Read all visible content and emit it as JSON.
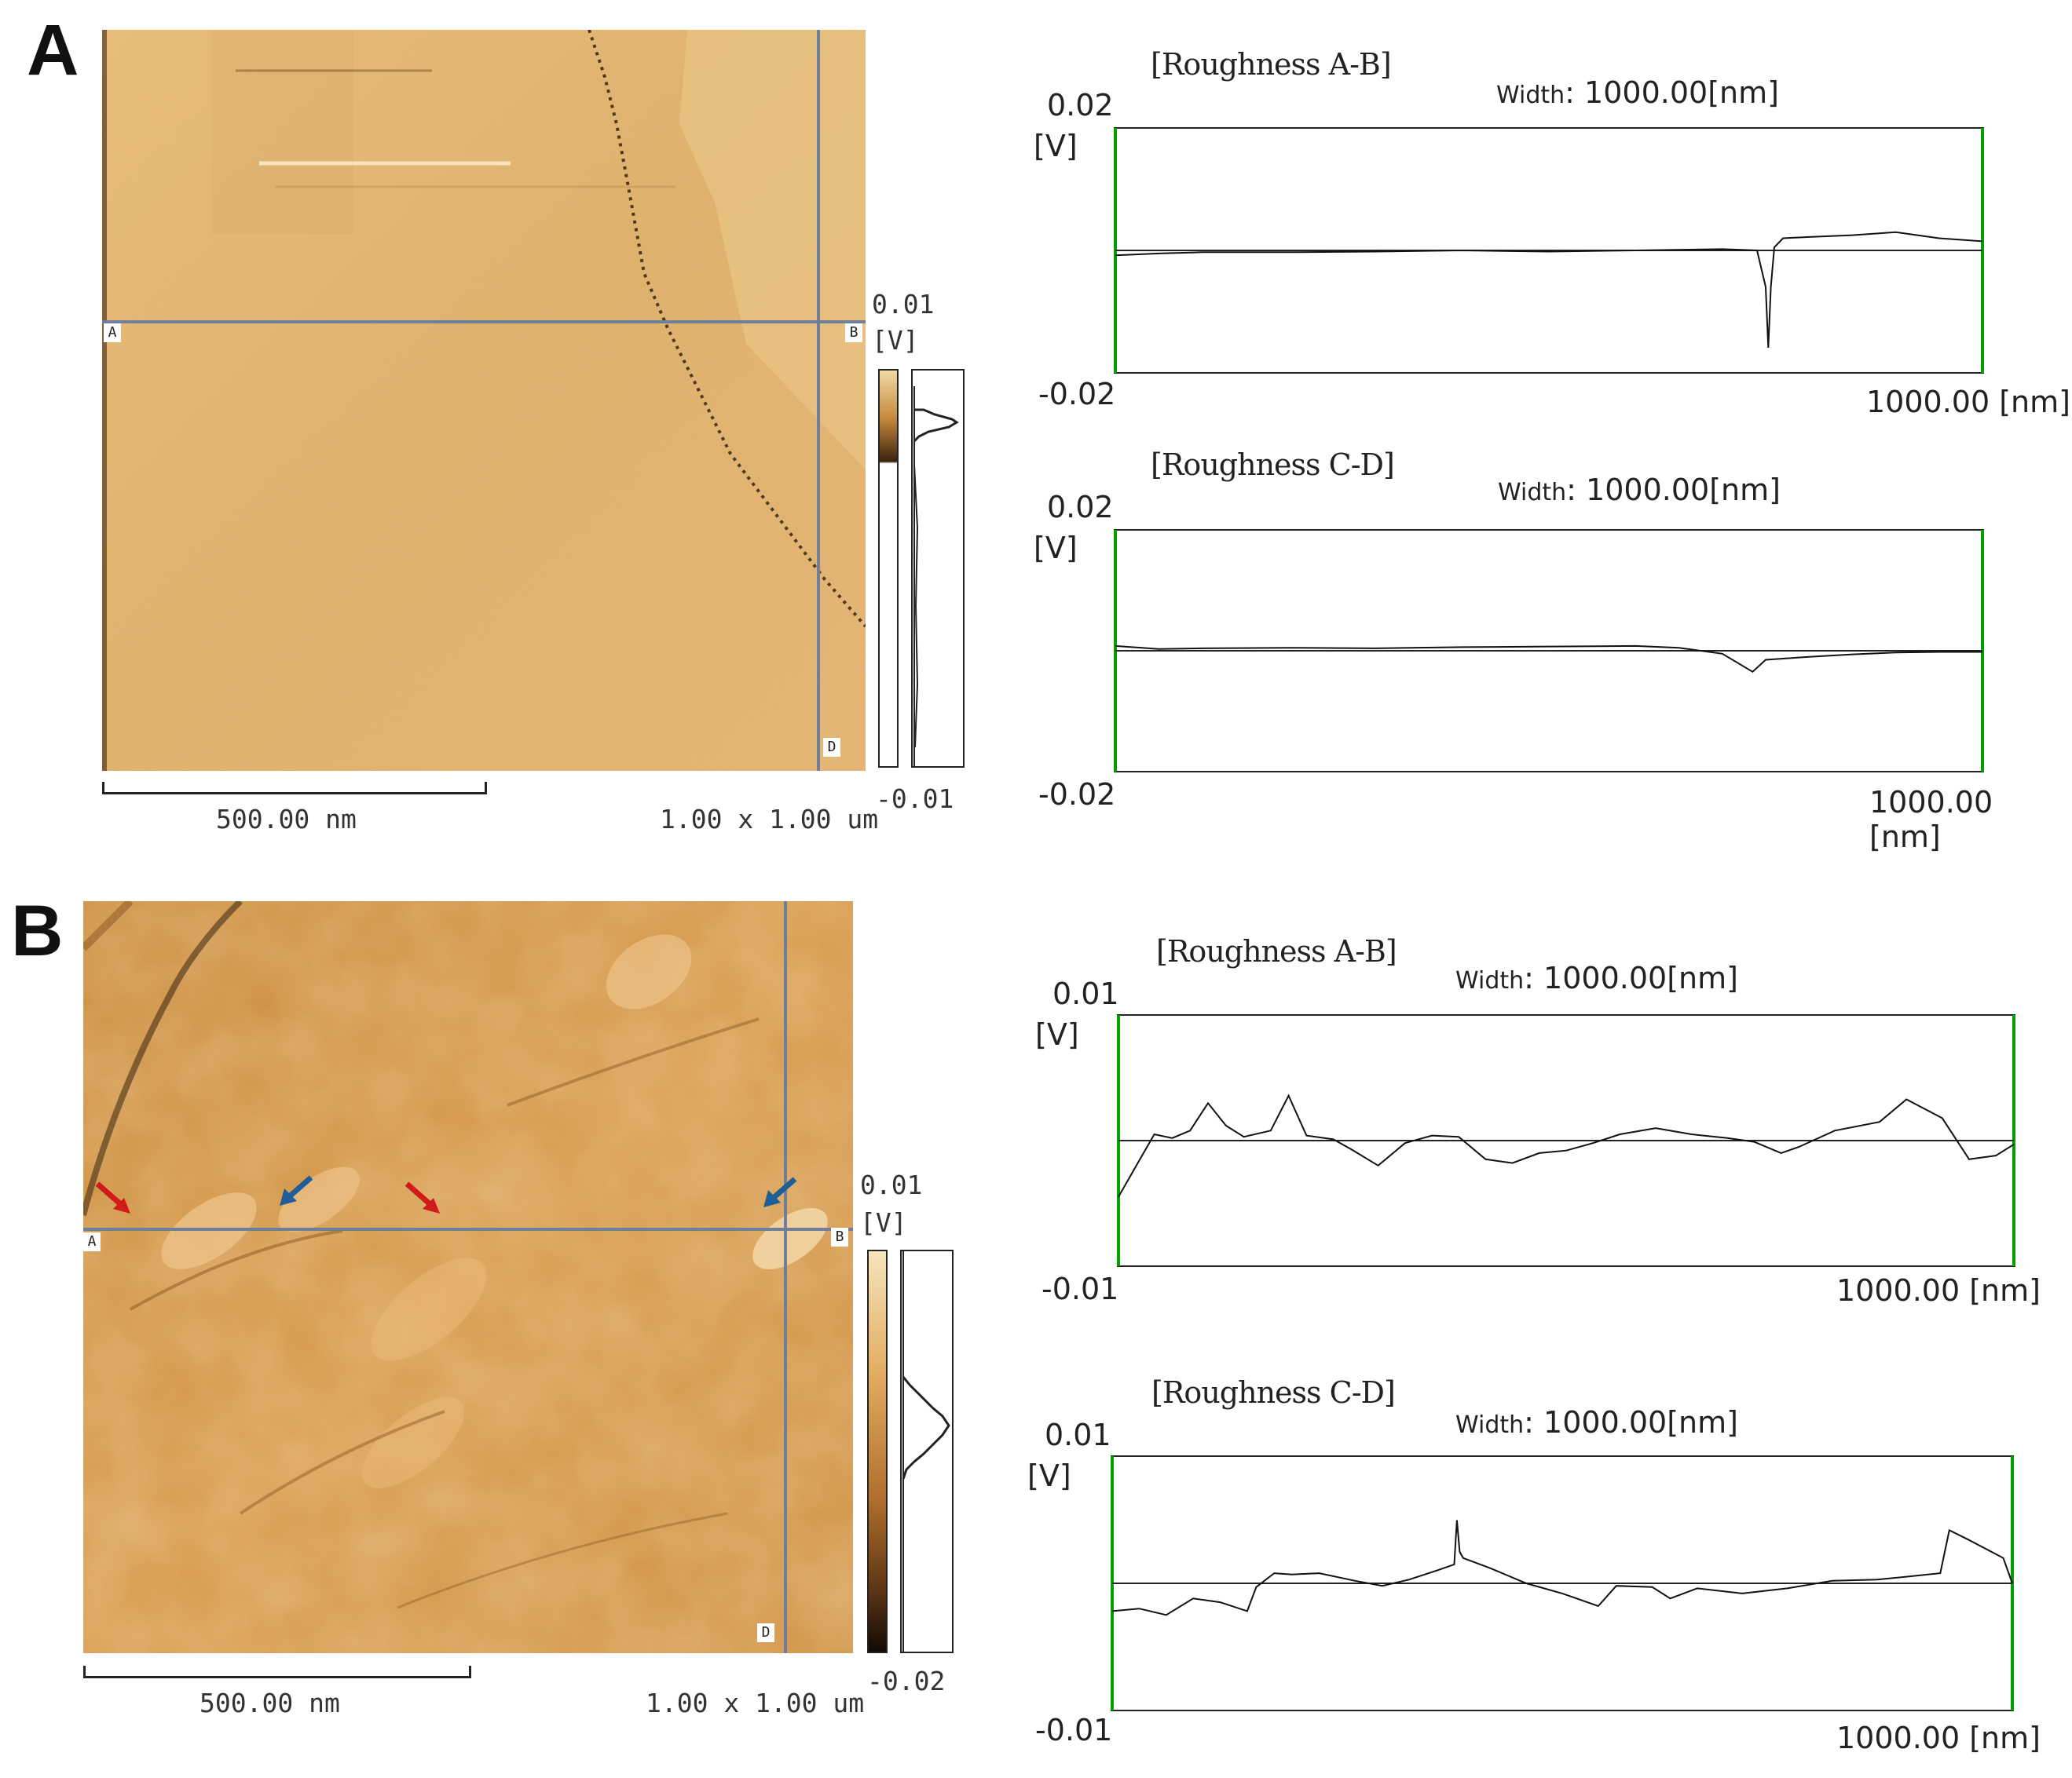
{
  "colors": {
    "afm_base": "#d9a45a",
    "afm_light": "#efd29b",
    "afm_dark": "#2a1a0c",
    "scan_line": "#6f7f9a",
    "plot_side_border": "#00a000",
    "arrow_red": "#d11a1a",
    "arrow_blue": "#1f5f96"
  },
  "panels": [
    {
      "label": "A",
      "scan_markers": {
        "a": "A",
        "b": "B",
        "d": "D"
      },
      "scalebar": "500.00 nm",
      "scan_size": "1.00 x 1.00 um",
      "colorbar": {
        "max": "0.01",
        "unit": "[V]",
        "min": "-0.01"
      }
    },
    {
      "label": "B",
      "scan_markers": {
        "a": "A",
        "b": "B",
        "d": "D"
      },
      "scalebar": "500.00 nm",
      "scan_size": "1.00 x 1.00 um",
      "colorbar": {
        "max": "0.01",
        "unit": "[V]",
        "min": "-0.02"
      },
      "arrows": [
        "red",
        "blue",
        "red",
        "blue"
      ]
    }
  ],
  "chart_data": [
    {
      "type": "line",
      "title": "[Roughness A-B]",
      "width_label": "Width",
      "width_value": ": 1000.00[nm]",
      "y_unit": "[V]",
      "ylim": [
        -0.02,
        0.02
      ],
      "y_top_label": "0.02",
      "y_bottom_label": "-0.02",
      "x_end_label": "1000.00 [nm]",
      "xlim": [
        0,
        1000
      ],
      "reference_line": 0.0,
      "series": [
        {
          "x": [
            0,
            50,
            100,
            200,
            300,
            400,
            500,
            600,
            700,
            740,
            750,
            753,
            756,
            760,
            770,
            800,
            850,
            900,
            950,
            1000
          ],
          "values": [
            -0.0008,
            -0.0005,
            -0.0003,
            -0.0003,
            -0.0002,
            0.0,
            -0.0002,
            0.0,
            0.0002,
            0.0,
            -0.006,
            -0.016,
            -0.006,
            0.0005,
            0.002,
            0.0022,
            0.0025,
            0.003,
            0.002,
            0.0015
          ]
        }
      ]
    },
    {
      "type": "line",
      "title": "[Roughness C-D]",
      "width_label": "Width",
      "width_value": ": 1000.00[nm]",
      "y_unit": "[V]",
      "ylim": [
        -0.02,
        0.02
      ],
      "y_top_label": "0.02",
      "y_bottom_label": "-0.02",
      "x_end_label": "1000.00 [nm]",
      "xlim": [
        0,
        1000
      ],
      "reference_line": 0.0,
      "series": [
        {
          "x": [
            0,
            50,
            100,
            200,
            300,
            400,
            500,
            600,
            650,
            700,
            735,
            750,
            800,
            850,
            900,
            950,
            1000
          ],
          "values": [
            0.0008,
            0.0003,
            0.0004,
            0.0005,
            0.0004,
            0.0006,
            0.0007,
            0.0008,
            0.0005,
            -0.0005,
            -0.0035,
            -0.0015,
            -0.001,
            -0.0006,
            -0.0003,
            -0.0002,
            -0.0002
          ]
        }
      ]
    },
    {
      "type": "line",
      "title": "[Roughness A-B]",
      "width_label": "Width",
      "width_value": ": 1000.00[nm]",
      "y_unit": "[V]",
      "ylim": [
        -0.01,
        0.01
      ],
      "y_top_label": "0.01",
      "y_bottom_label": "-0.01",
      "x_end_label": "1000.00 [nm]",
      "xlim": [
        0,
        1000
      ],
      "reference_line": 0.0,
      "series": [
        {
          "x": [
            0,
            20,
            40,
            60,
            80,
            100,
            120,
            140,
            170,
            190,
            210,
            240,
            260,
            290,
            320,
            350,
            380,
            410,
            440,
            470,
            500,
            530,
            560,
            600,
            640,
            680,
            710,
            740,
            760,
            800,
            850,
            880,
            920,
            950,
            980,
            1000
          ],
          "values": [
            -0.0045,
            -0.002,
            0.0005,
            0.0002,
            0.0008,
            0.003,
            0.0012,
            0.0003,
            0.0008,
            0.0036,
            0.0004,
            0.0001,
            -0.0007,
            -0.002,
            -0.0002,
            0.0004,
            0.0003,
            -0.0015,
            -0.0018,
            -0.001,
            -0.0008,
            -0.0002,
            0.0005,
            0.001,
            0.0005,
            0.0002,
            -0.0001,
            -0.001,
            -0.0005,
            0.0008,
            0.0015,
            0.0033,
            0.0018,
            -0.0015,
            -0.0012,
            -0.0003
          ]
        }
      ]
    },
    {
      "type": "line",
      "title": "[Roughness C-D]",
      "width_label": "Width",
      "width_value": ": 1000.00[nm]",
      "y_unit": "[V]",
      "ylim": [
        -0.01,
        0.01
      ],
      "y_top_label": "0.01",
      "y_bottom_label": "-0.01",
      "x_end_label": "1000.00 [nm]",
      "xlim": [
        0,
        1000
      ],
      "reference_line": 0.0,
      "series": [
        {
          "x": [
            0,
            30,
            60,
            90,
            120,
            150,
            160,
            180,
            200,
            230,
            270,
            300,
            330,
            360,
            380,
            383,
            386,
            390,
            420,
            460,
            500,
            540,
            560,
            600,
            620,
            650,
            700,
            750,
            800,
            850,
            880,
            920,
            930,
            950,
            990,
            1000
          ],
          "values": [
            -0.0022,
            -0.002,
            -0.0025,
            -0.0012,
            -0.0015,
            -0.0022,
            -0.0003,
            0.0008,
            0.0007,
            0.0008,
            0.0002,
            -0.0002,
            0.0003,
            0.001,
            0.0015,
            0.005,
            0.0025,
            0.002,
            0.0012,
            0.0,
            -0.0008,
            -0.0018,
            -0.0002,
            -0.0003,
            -0.0012,
            -0.0004,
            -0.0008,
            -0.0004,
            0.0002,
            0.0003,
            0.0005,
            0.0008,
            0.0042,
            0.0035,
            0.002,
            0.0
          ]
        }
      ]
    }
  ]
}
